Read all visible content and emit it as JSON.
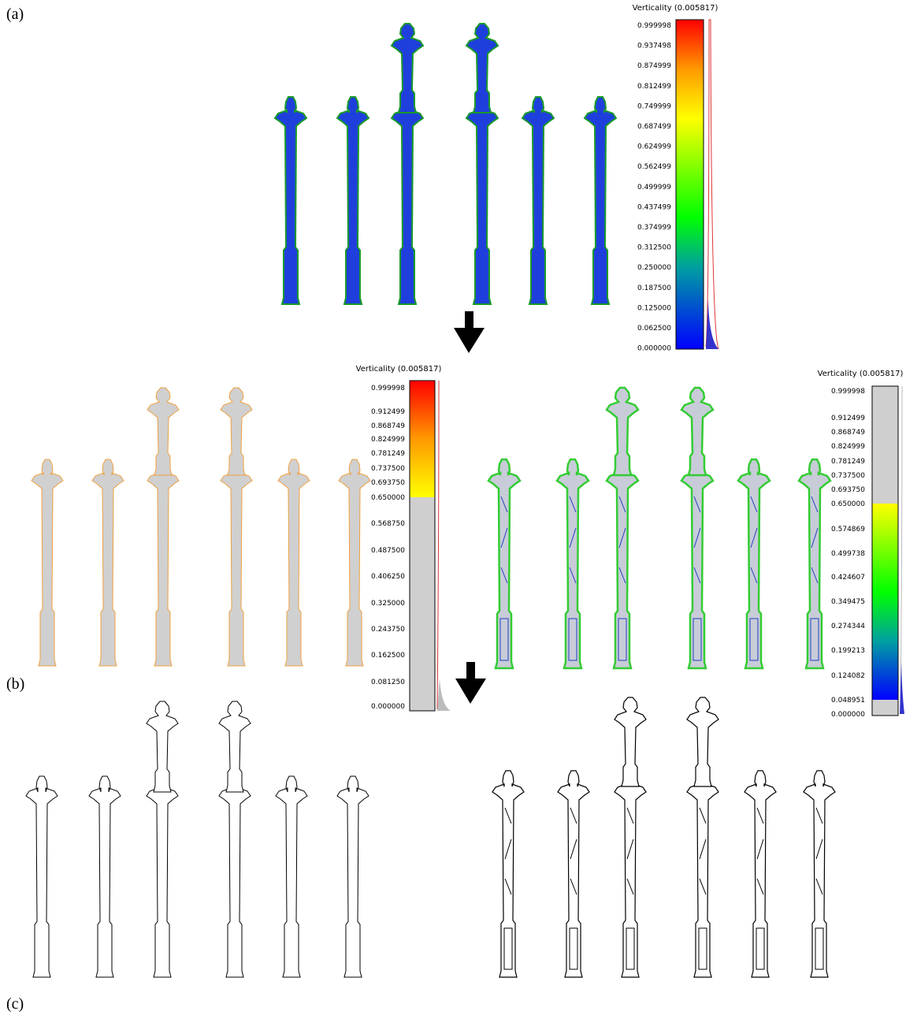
{
  "panels": {
    "a": "(a)",
    "b": "(b)",
    "c": "(c)"
  },
  "scales": [
    {
      "title": "Verticality (0.005817)",
      "labels": [
        "0.999998",
        "0.937498",
        "0.874999",
        "0.812499",
        "0.749999",
        "0.687499",
        "0.624999",
        "0.562499",
        "0.499999",
        "0.437499",
        "0.374999",
        "0.312500",
        "0.250000",
        "0.187500",
        "0.125000",
        "0.062500",
        "0.000000"
      ]
    },
    {
      "title": "Verticality (0.005817)",
      "labels": [
        "0.999998",
        "0.912499",
        "0.868749",
        "0.824999",
        "0.781249",
        "0.737500",
        "0.693750",
        "0.650000",
        "0.568750",
        "0.487500",
        "0.406250",
        "0.325000",
        "0.243750",
        "0.162500",
        "0.081250",
        "0.000000"
      ]
    },
    {
      "title": "Verticality (0.005817)",
      "labels": [
        "0.999998",
        "0.912499",
        "0.868749",
        "0.824999",
        "0.781249",
        "0.737500",
        "0.693750",
        "0.650000",
        "0.574869",
        "0.499738",
        "0.424607",
        "0.349475",
        "0.274344",
        "0.199213",
        "0.124082",
        "0.048951",
        "0.000000"
      ]
    }
  ]
}
